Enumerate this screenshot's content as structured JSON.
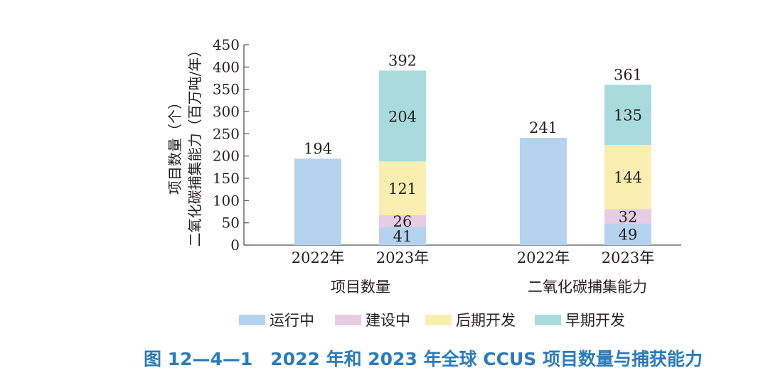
{
  "chart_data": {
    "type": "bar",
    "stacked": true,
    "ylabel_lines": [
      "项目数量（个）",
      "二氧化碳捕集能力（百万吨/年）"
    ],
    "ylim": [
      0,
      450
    ],
    "yticks": [
      0,
      50,
      100,
      150,
      200,
      250,
      300,
      350,
      400,
      450
    ],
    "groups": [
      {
        "name": "项目数量",
        "bars": [
          {
            "label": "2022年",
            "segments": [
              194,
              0,
              0,
              0
            ],
            "segment_labels": [
              "",
              "",
              "",
              ""
            ],
            "total": 194
          },
          {
            "label": "2023年",
            "segments": [
              41,
              26,
              121,
              204
            ],
            "segment_labels": [
              "41",
              "26",
              "121",
              "204"
            ],
            "total": 392
          }
        ]
      },
      {
        "name": "二氧化碳捕集能力",
        "bars": [
          {
            "label": "2022年",
            "segments": [
              241,
              0,
              0,
              0
            ],
            "segment_labels": [
              "",
              "",
              "",
              ""
            ],
            "total": 241
          },
          {
            "label": "2023年",
            "segments": [
              49,
              32,
              144,
              135
            ],
            "segment_labels": [
              "49",
              "32",
              "144",
              "135"
            ],
            "total": 361
          }
        ]
      }
    ],
    "series": [
      {
        "name": "运行中",
        "color": "#b5d3ee"
      },
      {
        "name": "建设中",
        "color": "#e6cde4"
      },
      {
        "name": "后期开发",
        "color": "#f8eeb0"
      },
      {
        "name": "早期开发",
        "color": "#a8dcdc"
      }
    ],
    "legend_position": "bottom",
    "grid": false
  },
  "caption": "图 12—4—1　2022 年和 2023 年全球 CCUS 项目数量与捕获能力"
}
